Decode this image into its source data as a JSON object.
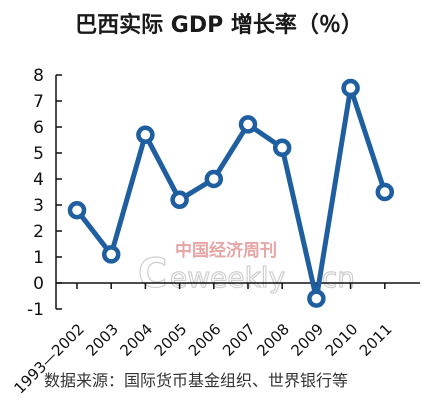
{
  "chart_data": {
    "type": "line",
    "title": "巴西实际 GDP 增长率（％）",
    "categories": [
      "1993—2002",
      "2003",
      "2004",
      "2005",
      "2006",
      "2007",
      "2008",
      "2009",
      "2010",
      "2011"
    ],
    "values": [
      2.8,
      1.1,
      5.7,
      3.2,
      4.0,
      6.1,
      5.2,
      -0.6,
      7.5,
      3.5
    ],
    "yticks": [
      "8",
      "7",
      "6",
      "5",
      "4",
      "3",
      "2",
      "1",
      "0",
      "-1"
    ],
    "ylim": [
      -1,
      8
    ],
    "grid": false,
    "line_color": "#1f5fa0",
    "marker_fill": "#ffffff",
    "source": "数据来源：国际货币基金组织、世界银行等",
    "watermark": {
      "cn": "中国经济周刊",
      "en_prefix": "C",
      "en_main": "eweekly",
      "en_suffix": ".cn"
    }
  }
}
